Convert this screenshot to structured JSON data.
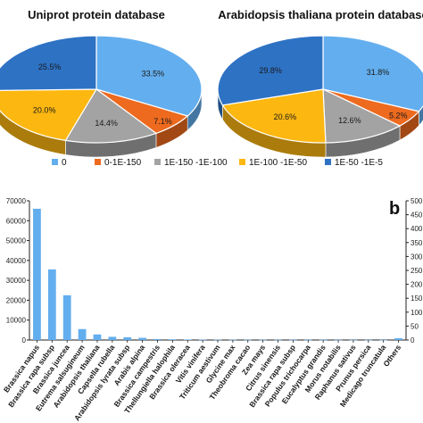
{
  "panel_b_label": "b",
  "chart_data": [
    {
      "type": "pie",
      "title": "Uniprot protein database",
      "categories": [
        "0",
        "0-1E-150",
        "1E-150 -1E-100",
        "1E-100 -1E-50",
        "1E-50 -1E-5"
      ],
      "values": [
        33.5,
        7.1,
        14.4,
        20.0,
        25.5
      ],
      "labels": [
        "33.5%",
        "7.1%",
        "14.4%",
        "20.0%",
        "25.5%"
      ],
      "colors": [
        "#63aeee",
        "#ed6a1f",
        "#a3a3a3",
        "#fcb711",
        "#2e72c4"
      ],
      "style": "3d"
    },
    {
      "type": "pie",
      "title": "Arabidopsis thaliana protein database",
      "categories": [
        "0",
        "0-1E-150",
        "1E-150 -1E-100",
        "1E-100 -1E-50",
        "1E-50 -1E-5"
      ],
      "values": [
        31.8,
        5.2,
        12.6,
        20.6,
        29.8
      ],
      "labels": [
        "31.8%",
        "5.2%",
        "12.6%",
        "20.6%",
        "29.8%"
      ],
      "colors": [
        "#63aeee",
        "#ed6a1f",
        "#a3a3a3",
        "#fcb711",
        "#2e72c4"
      ],
      "style": "3d"
    },
    {
      "type": "bar",
      "categories": [
        "Brassica napus",
        "Brassica rapa subsp",
        "Brassica juncea",
        "Eutrema salsugineum",
        "Arabidopsis thaliana",
        "Capsella rubella",
        "Arabidopsis lyrata subsp",
        "Arabis alpina",
        "Brassica campestris",
        "Thellungiella halophila",
        "Brassica oleracea",
        "Vitis vinifera",
        "Triticum aestivum",
        "Glycine max",
        "Theobroma cacao",
        "Zea mays",
        "Citrus sinensis",
        "Brassica rapa subsp",
        "Populus trichocarpa",
        "Eucalyptus grandis",
        "Morus notabilis",
        "Raphanus sativus",
        "Prunus persica",
        "Medicago truncatula",
        "Others"
      ],
      "values": [
        66000,
        35500,
        22500,
        5500,
        2800,
        1600,
        1400,
        1100,
        500,
        350,
        250,
        200,
        180,
        160,
        150,
        140,
        130,
        120,
        110,
        100,
        90,
        80,
        70,
        60,
        900
      ],
      "color": "#63aeee",
      "ylim": [
        0,
        70000
      ],
      "yticks": [
        "0",
        "10000",
        "20000",
        "30000",
        "40000",
        "50000",
        "60000",
        "70000"
      ],
      "right_axis_ticks": [
        "0",
        "50",
        "100",
        "150",
        "200",
        "250",
        "300",
        "350",
        "400",
        "450",
        "500"
      ],
      "legend": {
        "placement": "top",
        "entries": [
          "0",
          "0-1E-150",
          "1E-150 -1E-100",
          "1E-100 -1E-50",
          "1E-50 -1E-5"
        ],
        "colors": [
          "#63aeee",
          "#ed6a1f",
          "#a3a3a3",
          "#fcb711",
          "#2e72c4"
        ]
      }
    }
  ]
}
